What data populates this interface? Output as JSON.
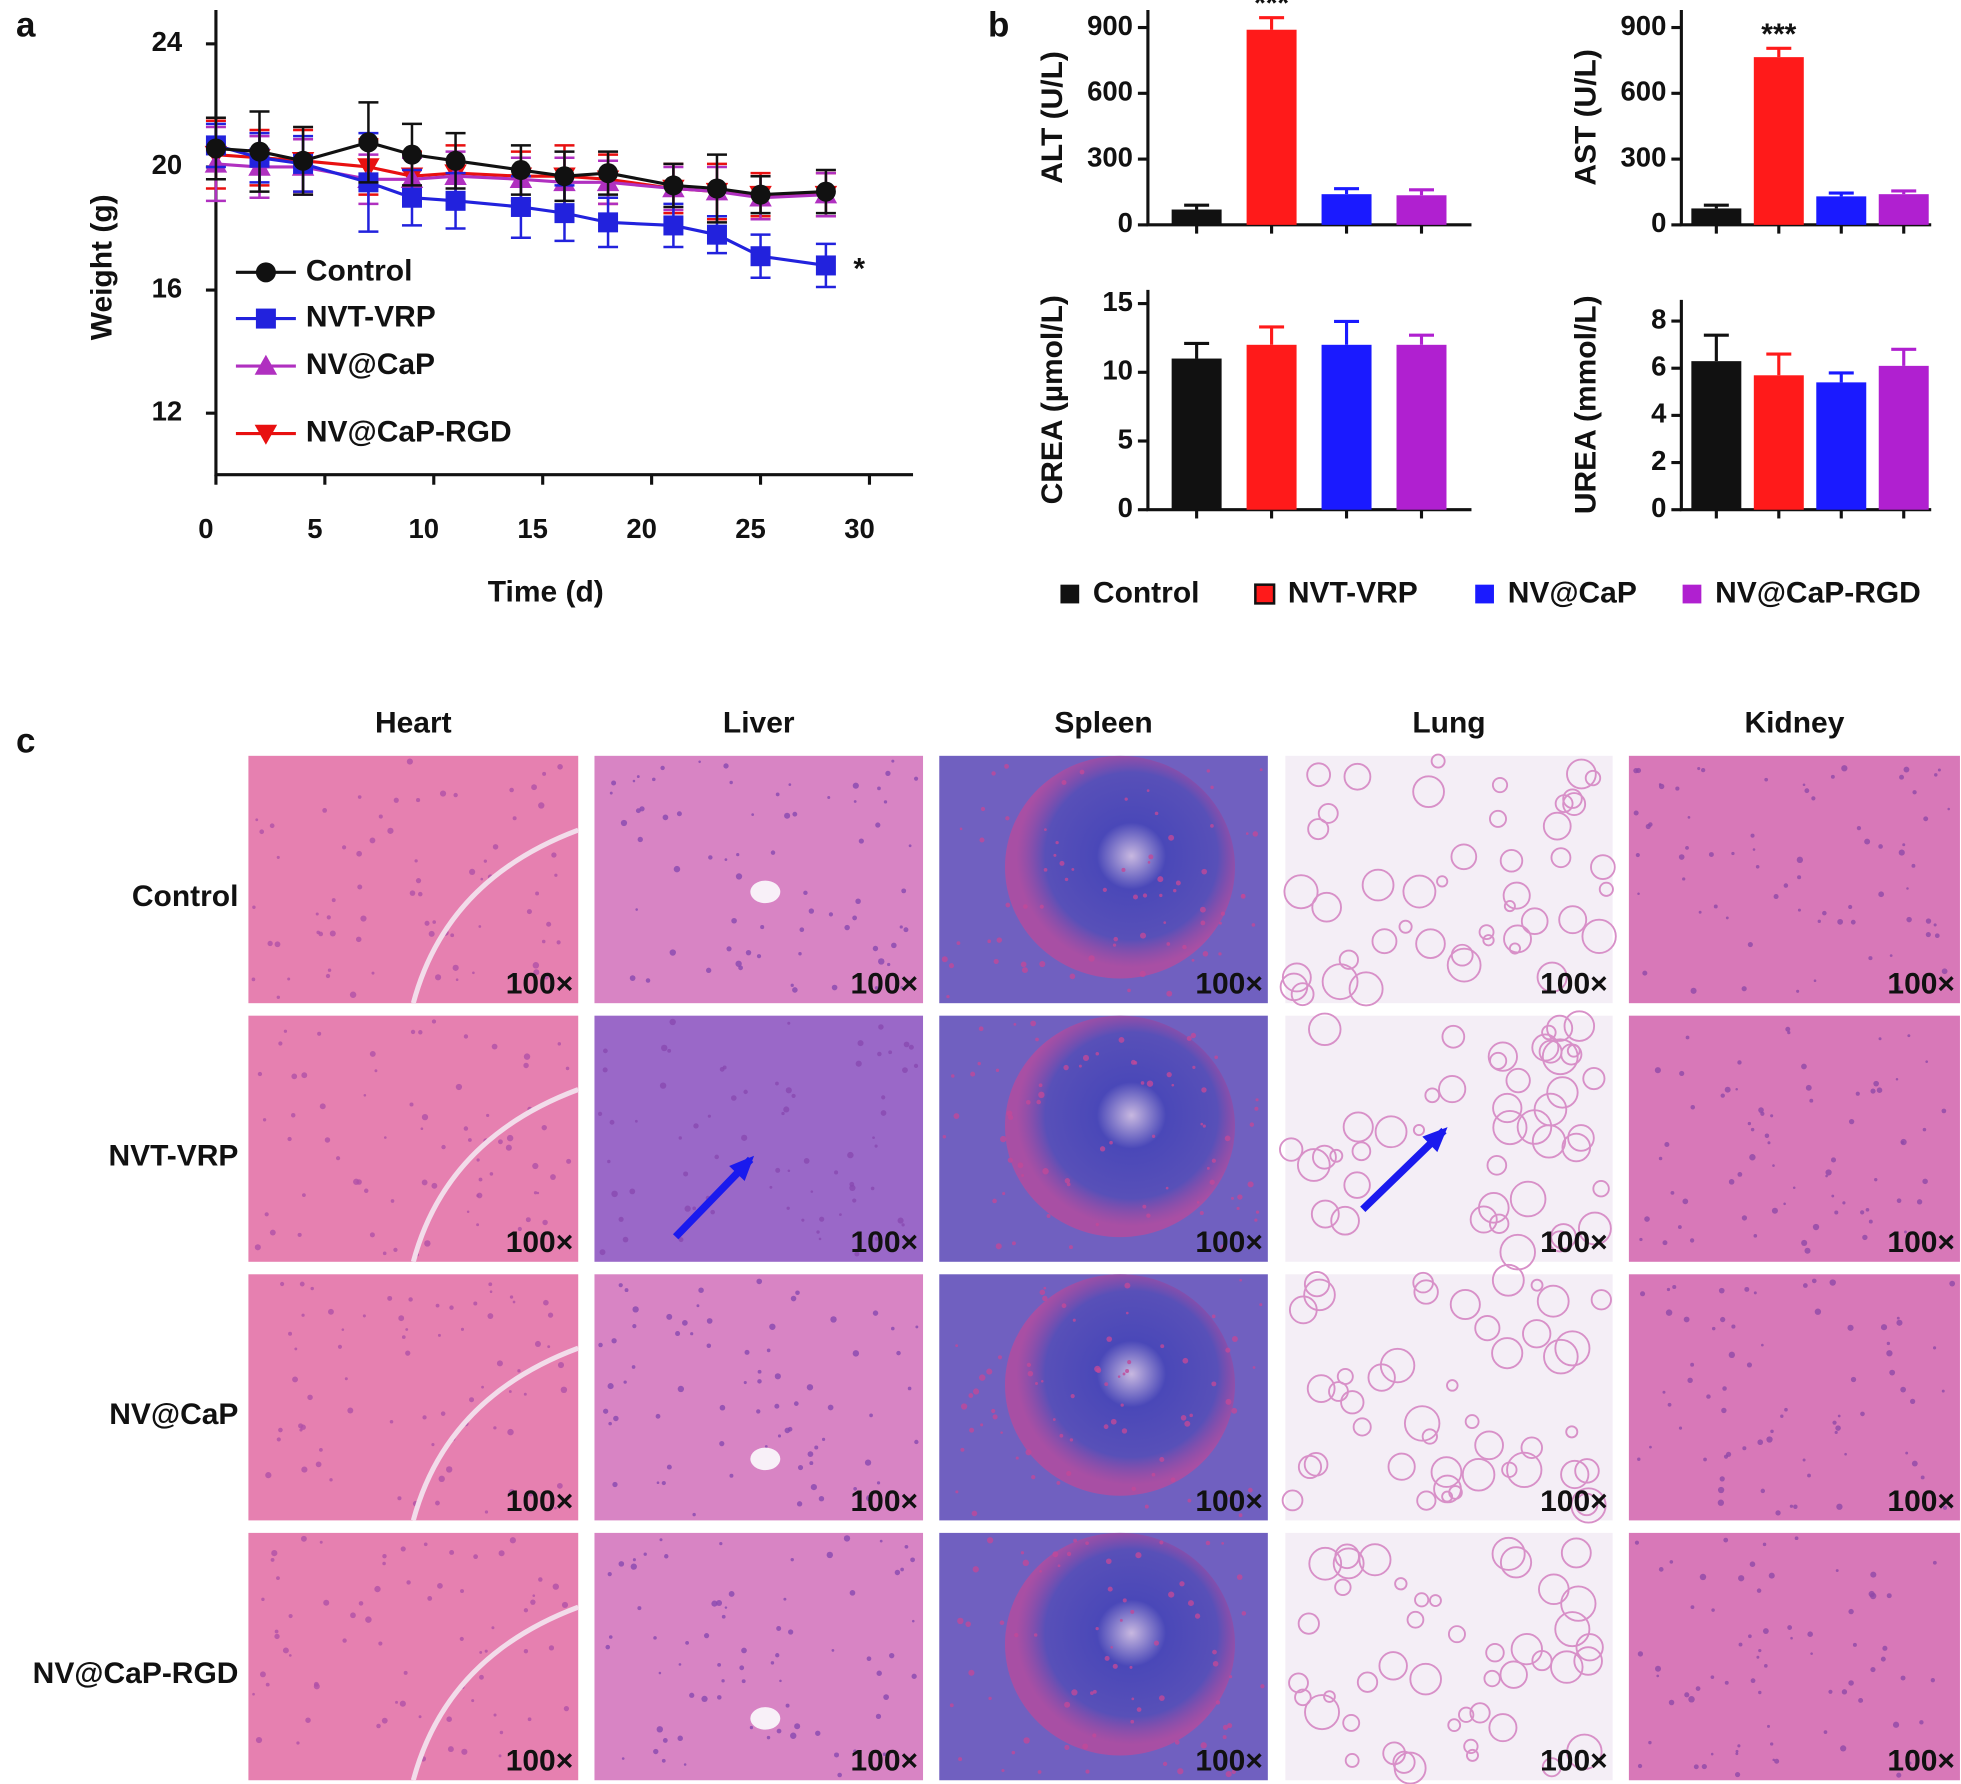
{
  "panel_labels": [
    "a",
    "b",
    "c"
  ],
  "chart_data": [
    {
      "type": "line",
      "xlabel": "Time (d)",
      "ylabel": "Weight (g)",
      "x": [
        0,
        2,
        4,
        7,
        9,
        11,
        14,
        16,
        18,
        21,
        23,
        25,
        28
      ],
      "xlim": [
        0,
        32
      ],
      "ylim": [
        10,
        25.1
      ],
      "xticks": [
        0,
        5,
        10,
        15,
        20,
        25,
        30
      ],
      "yticks": [
        12,
        16,
        20,
        24
      ],
      "series": [
        {
          "name": "Control",
          "color": "#111111",
          "marker": "circle",
          "values": [
            20.6,
            20.5,
            20.2,
            20.8,
            20.4,
            20.2,
            19.9,
            19.7,
            19.8,
            19.4,
            19.3,
            19.1,
            19.2
          ],
          "errors": [
            1.0,
            1.3,
            1.1,
            1.3,
            1.0,
            0.9,
            0.8,
            0.8,
            0.7,
            0.7,
            1.1,
            0.6,
            0.7
          ]
        },
        {
          "name": "NVT-VRP",
          "color": "#2222dd",
          "marker": "square",
          "values": [
            20.7,
            20.3,
            20.1,
            19.5,
            19.0,
            18.9,
            18.7,
            18.5,
            18.2,
            18.1,
            17.8,
            17.1,
            16.8
          ],
          "errors": [
            0.7,
            0.8,
            0.9,
            1.6,
            0.9,
            0.9,
            1.0,
            0.9,
            0.8,
            0.7,
            0.6,
            0.7,
            0.7
          ]
        },
        {
          "name": "NV@CaP",
          "color": "#b030c0",
          "marker": "triangle-up",
          "values": [
            20.1,
            20.0,
            20.0,
            19.6,
            19.6,
            19.7,
            19.6,
            19.5,
            19.5,
            19.3,
            19.2,
            19.0,
            19.1
          ],
          "errors": [
            1.2,
            1.0,
            0.9,
            0.8,
            0.7,
            0.8,
            0.7,
            0.8,
            0.7,
            0.7,
            0.8,
            0.7,
            0.7
          ]
        },
        {
          "name": "NV@CaP-RGD",
          "color": "#e81010",
          "marker": "triangle-down",
          "values": [
            20.4,
            20.3,
            20.2,
            20.0,
            19.7,
            19.8,
            19.7,
            19.7,
            19.6,
            19.3,
            19.2,
            19.1,
            19.1
          ],
          "errors": [
            1.1,
            0.9,
            1.0,
            0.9,
            0.8,
            0.9,
            0.8,
            1.0,
            0.8,
            0.8,
            0.9,
            0.7,
            0.7
          ]
        }
      ],
      "annotations": [
        {
          "text": "*",
          "series": 1,
          "index": 12
        }
      ]
    },
    {
      "type": "bar",
      "ylabel": "ALT (U/L)",
      "ylim": [
        0,
        980
      ],
      "yticks": [
        0,
        300,
        600,
        900
      ],
      "values": [
        70,
        890,
        140,
        135
      ],
      "errors": [
        20,
        55,
        25,
        25
      ],
      "annotations": [
        {
          "text": "***",
          "index": 1
        }
      ]
    },
    {
      "type": "bar",
      "ylabel": "AST (U/L)",
      "ylim": [
        0,
        980
      ],
      "yticks": [
        0,
        300,
        600,
        900
      ],
      "values": [
        75,
        765,
        130,
        140
      ],
      "errors": [
        15,
        40,
        15,
        15
      ],
      "annotations": [
        {
          "text": "***",
          "index": 1
        }
      ]
    },
    {
      "type": "bar",
      "ylabel": "CREA (µmol/L)",
      "ylim": [
        0,
        16
      ],
      "yticks": [
        0,
        5,
        10,
        15
      ],
      "values": [
        11,
        12,
        12,
        12
      ],
      "errors": [
        1.1,
        1.3,
        1.7,
        0.7
      ]
    },
    {
      "type": "bar",
      "ylabel": "UREA (mmol/L)",
      "ylim": [
        0,
        8.9
      ],
      "yticks": [
        0,
        2,
        4,
        6,
        8
      ],
      "values": [
        6.3,
        5.7,
        5.4,
        6.1
      ],
      "errors": [
        1.1,
        0.9,
        0.4,
        0.7
      ]
    }
  ],
  "bar_legend": [
    {
      "name": "Control",
      "color": "#111111"
    },
    {
      "name": "NVT-VRP",
      "color": "#ff1a1a"
    },
    {
      "name": "NV@CaP",
      "color": "#1a1aff"
    },
    {
      "name": "NV@CaP-RGD",
      "color": "#b020d0"
    }
  ],
  "histology": {
    "columns": [
      "Heart",
      "Liver",
      "Spleen",
      "Lung",
      "Kidney"
    ],
    "rows": [
      "Control",
      "NVT-VRP",
      "NV@CaP",
      "NV@CaP-RGD"
    ],
    "magnification": "100×"
  }
}
